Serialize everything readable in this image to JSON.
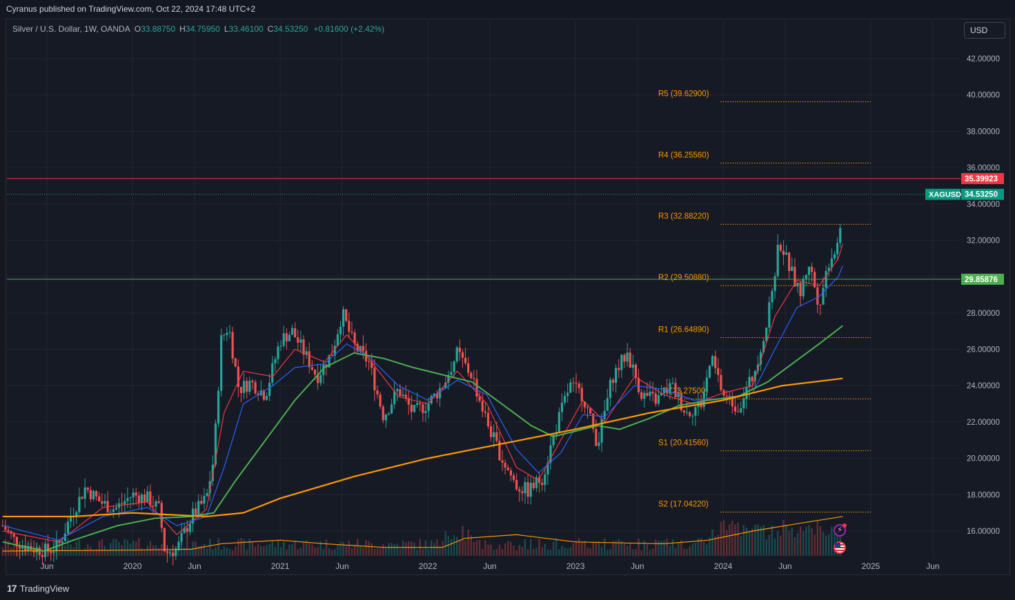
{
  "header": {
    "publish_text": "Cyranus published on TradingView.com, Oct 22, 2024 17:48 UTC+2"
  },
  "legend": {
    "symbol_text": "Silver / U.S. Dollar, 1W, OANDA",
    "open_label": "O",
    "open_value": "33.88750",
    "high_label": "H",
    "high_value": "34.75950",
    "low_label": "L",
    "low_value": "33.46100",
    "close_label": "C",
    "close_value": "34.53250",
    "change_text": "+0.81600 (+2.42%)"
  },
  "currency_button": {
    "label": "USD"
  },
  "footer": {
    "brand_text": "TradingView"
  },
  "chart_data": {
    "type": "candlestick",
    "symbol": "XAGUSD",
    "timeframe": "1W",
    "ylim": [
      14.8,
      43.0
    ],
    "y_ticks": [
      "42.00000",
      "40.00000",
      "38.00000",
      "36.00000",
      "34.00000",
      "32.00000",
      "28.00000",
      "26.00000",
      "24.00000",
      "22.00000",
      "20.00000",
      "18.00000",
      "16.00000"
    ],
    "x_ticks": [
      {
        "label": "Jun",
        "t": 2019.42
      },
      {
        "label": "2020",
        "t": 2020.0
      },
      {
        "label": "Jun",
        "t": 2020.42
      },
      {
        "label": "2021",
        "t": 2021.0
      },
      {
        "label": "Jun",
        "t": 2021.42
      },
      {
        "label": "2022",
        "t": 2022.0
      },
      {
        "label": "Jun",
        "t": 2022.42
      },
      {
        "label": "2023",
        "t": 2023.0
      },
      {
        "label": "Jun",
        "t": 2023.42
      },
      {
        "label": "2024",
        "t": 2024.0
      },
      {
        "label": "Jun",
        "t": 2024.42
      },
      {
        "label": "2025",
        "t": 2025.0
      },
      {
        "label": "Jun",
        "t": 2025.42
      }
    ],
    "horizontal_lines": [
      {
        "value": 35.39923,
        "label": "35.39923",
        "color": "#f23645"
      },
      {
        "value": 29.85876,
        "label": "29.85876",
        "color": "#4caf50"
      }
    ],
    "last_price": {
      "value": 34.5325,
      "symbol_label": "XAGUSD",
      "label": "34.53250",
      "color": "#089981"
    },
    "pivot_levels": [
      {
        "name": "R5",
        "value": 39.629,
        "label": "R5 (39.62900)"
      },
      {
        "name": "R4",
        "value": 36.2556,
        "label": "R4 (36.25560)"
      },
      {
        "name": "R3",
        "value": 32.8822,
        "label": "R3 (32.88220)"
      },
      {
        "name": "R2",
        "value": 29.5088,
        "label": "R2 (29.50880)"
      },
      {
        "name": "R1",
        "value": 26.6489,
        "label": "R1 (26.64890)"
      },
      {
        "name": "P",
        "value": 23.275,
        "label": "P (23.27500)"
      },
      {
        "name": "S1",
        "value": 20.4156,
        "label": "S1 (20.41560)"
      },
      {
        "name": "S2",
        "value": 17.0422,
        "label": "S2 (17.04220)"
      }
    ],
    "price_path": [
      [
        2019.12,
        16.3
      ],
      [
        2019.2,
        15.5
      ],
      [
        2019.3,
        15.1
      ],
      [
        2019.42,
        14.9
      ],
      [
        2019.5,
        15.2
      ],
      [
        2019.58,
        16.8
      ],
      [
        2019.68,
        18.4
      ],
      [
        2019.78,
        17.6
      ],
      [
        2019.88,
        17.2
      ],
      [
        2020.0,
        18.0
      ],
      [
        2020.1,
        17.8
      ],
      [
        2020.18,
        17.2
      ],
      [
        2020.22,
        14.8
      ],
      [
        2020.3,
        15.0
      ],
      [
        2020.4,
        16.8
      ],
      [
        2020.5,
        17.8
      ],
      [
        2020.55,
        20.0
      ],
      [
        2020.6,
        26.5
      ],
      [
        2020.65,
        27.3
      ],
      [
        2020.72,
        23.8
      ],
      [
        2020.8,
        24.2
      ],
      [
        2020.9,
        23.5
      ],
      [
        2021.0,
        26.5
      ],
      [
        2021.08,
        27.0
      ],
      [
        2021.15,
        26.0
      ],
      [
        2021.25,
        24.5
      ],
      [
        2021.35,
        25.8
      ],
      [
        2021.42,
        28.0
      ],
      [
        2021.5,
        26.2
      ],
      [
        2021.6,
        25.3
      ],
      [
        2021.7,
        22.3
      ],
      [
        2021.8,
        23.8
      ],
      [
        2021.9,
        22.5
      ],
      [
        2022.0,
        23.0
      ],
      [
        2022.1,
        24.0
      ],
      [
        2022.2,
        25.8
      ],
      [
        2022.3,
        24.5
      ],
      [
        2022.4,
        22.0
      ],
      [
        2022.5,
        20.0
      ],
      [
        2022.6,
        18.5
      ],
      [
        2022.68,
        18.2
      ],
      [
        2022.78,
        19.0
      ],
      [
        2022.86,
        21.5
      ],
      [
        2022.96,
        24.0
      ],
      [
        2023.05,
        23.5
      ],
      [
        2023.15,
        20.8
      ],
      [
        2023.25,
        24.5
      ],
      [
        2023.35,
        25.8
      ],
      [
        2023.45,
        23.5
      ],
      [
        2023.55,
        23.2
      ],
      [
        2023.65,
        24.0
      ],
      [
        2023.75,
        22.5
      ],
      [
        2023.85,
        23.0
      ],
      [
        2023.92,
        25.5
      ],
      [
        2024.0,
        23.5
      ],
      [
        2024.1,
        22.8
      ],
      [
        2024.2,
        24.5
      ],
      [
        2024.3,
        27.5
      ],
      [
        2024.38,
        32.0
      ],
      [
        2024.45,
        30.5
      ],
      [
        2024.52,
        29.0
      ],
      [
        2024.58,
        30.8
      ],
      [
        2024.65,
        28.5
      ],
      [
        2024.72,
        31.0
      ],
      [
        2024.78,
        31.8
      ],
      [
        2024.81,
        34.53
      ]
    ],
    "moving_averages": [
      {
        "name": "EMA short",
        "color": "#f23645",
        "points": [
          [
            2019.12,
            16.0
          ],
          [
            2019.5,
            15.4
          ],
          [
            2019.8,
            17.3
          ],
          [
            2020.1,
            17.6
          ],
          [
            2020.3,
            15.8
          ],
          [
            2020.5,
            17.2
          ],
          [
            2020.62,
            22.5
          ],
          [
            2020.75,
            24.8
          ],
          [
            2020.95,
            24.5
          ],
          [
            2021.1,
            26.0
          ],
          [
            2021.3,
            25.3
          ],
          [
            2021.45,
            26.8
          ],
          [
            2021.6,
            25.5
          ],
          [
            2021.8,
            23.4
          ],
          [
            2022.0,
            23.0
          ],
          [
            2022.2,
            24.8
          ],
          [
            2022.4,
            23.0
          ],
          [
            2022.6,
            19.5
          ],
          [
            2022.75,
            18.8
          ],
          [
            2022.9,
            21.0
          ],
          [
            2023.05,
            23.2
          ],
          [
            2023.2,
            22.0
          ],
          [
            2023.4,
            24.5
          ],
          [
            2023.6,
            23.5
          ],
          [
            2023.8,
            23.0
          ],
          [
            2024.0,
            23.6
          ],
          [
            2024.2,
            24.0
          ],
          [
            2024.35,
            27.8
          ],
          [
            2024.5,
            29.8
          ],
          [
            2024.65,
            29.5
          ],
          [
            2024.78,
            31.0
          ],
          [
            2024.81,
            31.8
          ]
        ]
      },
      {
        "name": "EMA medium",
        "color": "#2962ff",
        "points": [
          [
            2019.12,
            16.3
          ],
          [
            2019.5,
            15.5
          ],
          [
            2019.8,
            16.8
          ],
          [
            2020.1,
            17.3
          ],
          [
            2020.3,
            16.3
          ],
          [
            2020.5,
            16.8
          ],
          [
            2020.62,
            19.5
          ],
          [
            2020.75,
            23.0
          ],
          [
            2020.95,
            24.0
          ],
          [
            2021.1,
            25.0
          ],
          [
            2021.3,
            25.2
          ],
          [
            2021.45,
            26.3
          ],
          [
            2021.6,
            25.6
          ],
          [
            2021.8,
            24.0
          ],
          [
            2022.0,
            23.2
          ],
          [
            2022.2,
            24.3
          ],
          [
            2022.4,
            23.5
          ],
          [
            2022.6,
            20.5
          ],
          [
            2022.75,
            19.2
          ],
          [
            2022.9,
            20.3
          ],
          [
            2023.05,
            22.4
          ],
          [
            2023.2,
            22.3
          ],
          [
            2023.4,
            24.0
          ],
          [
            2023.6,
            23.8
          ],
          [
            2023.8,
            23.2
          ],
          [
            2024.0,
            23.3
          ],
          [
            2024.2,
            23.6
          ],
          [
            2024.35,
            26.0
          ],
          [
            2024.5,
            28.3
          ],
          [
            2024.65,
            28.9
          ],
          [
            2024.78,
            30.0
          ],
          [
            2024.81,
            30.6
          ]
        ]
      },
      {
        "name": "EMA long",
        "color": "#4caf50",
        "points": [
          [
            2019.12,
            15.4
          ],
          [
            2019.4,
            14.9
          ],
          [
            2019.6,
            15.5
          ],
          [
            2019.9,
            16.3
          ],
          [
            2020.15,
            16.7
          ],
          [
            2020.4,
            16.8
          ],
          [
            2020.55,
            17.0
          ],
          [
            2020.7,
            18.8
          ],
          [
            2020.9,
            21.0
          ],
          [
            2021.1,
            23.2
          ],
          [
            2021.3,
            25.0
          ],
          [
            2021.5,
            25.8
          ],
          [
            2021.7,
            25.5
          ],
          [
            2021.9,
            25.0
          ],
          [
            2022.1,
            24.6
          ],
          [
            2022.3,
            24.2
          ],
          [
            2022.5,
            23.0
          ],
          [
            2022.7,
            21.8
          ],
          [
            2022.85,
            21.2
          ],
          [
            2023.0,
            21.5
          ],
          [
            2023.15,
            21.8
          ],
          [
            2023.3,
            21.6
          ],
          [
            2023.5,
            22.2
          ],
          [
            2023.7,
            22.9
          ],
          [
            2023.9,
            23.2
          ],
          [
            2024.1,
            23.4
          ],
          [
            2024.3,
            24.2
          ],
          [
            2024.5,
            25.4
          ],
          [
            2024.65,
            26.3
          ],
          [
            2024.81,
            27.3
          ]
        ]
      },
      {
        "name": "SMA 200",
        "color": "#ff9800",
        "points": [
          [
            2019.12,
            16.8
          ],
          [
            2019.6,
            16.8
          ],
          [
            2020.0,
            17.0
          ],
          [
            2020.5,
            16.8
          ],
          [
            2020.75,
            17.0
          ],
          [
            2021.0,
            17.8
          ],
          [
            2021.5,
            19.0
          ],
          [
            2022.0,
            20.0
          ],
          [
            2022.5,
            20.8
          ],
          [
            2023.0,
            21.6
          ],
          [
            2023.5,
            22.5
          ],
          [
            2024.0,
            23.2
          ],
          [
            2024.4,
            24.0
          ],
          [
            2024.81,
            24.4
          ]
        ]
      }
    ],
    "volume_ma_points": [
      [
        2019.12,
        14.9
      ],
      [
        2020.0,
        14.95
      ],
      [
        2020.4,
        15.0
      ],
      [
        2020.6,
        15.3
      ],
      [
        2021.0,
        15.5
      ],
      [
        2021.3,
        15.3
      ],
      [
        2021.7,
        15.1
      ],
      [
        2022.1,
        15.1
      ],
      [
        2022.25,
        15.6
      ],
      [
        2022.6,
        15.8
      ],
      [
        2022.8,
        15.6
      ],
      [
        2023.0,
        15.4
      ],
      [
        2023.6,
        15.3
      ],
      [
        2023.9,
        15.5
      ],
      [
        2024.2,
        16.0
      ],
      [
        2024.5,
        16.4
      ],
      [
        2024.81,
        16.8
      ]
    ]
  }
}
